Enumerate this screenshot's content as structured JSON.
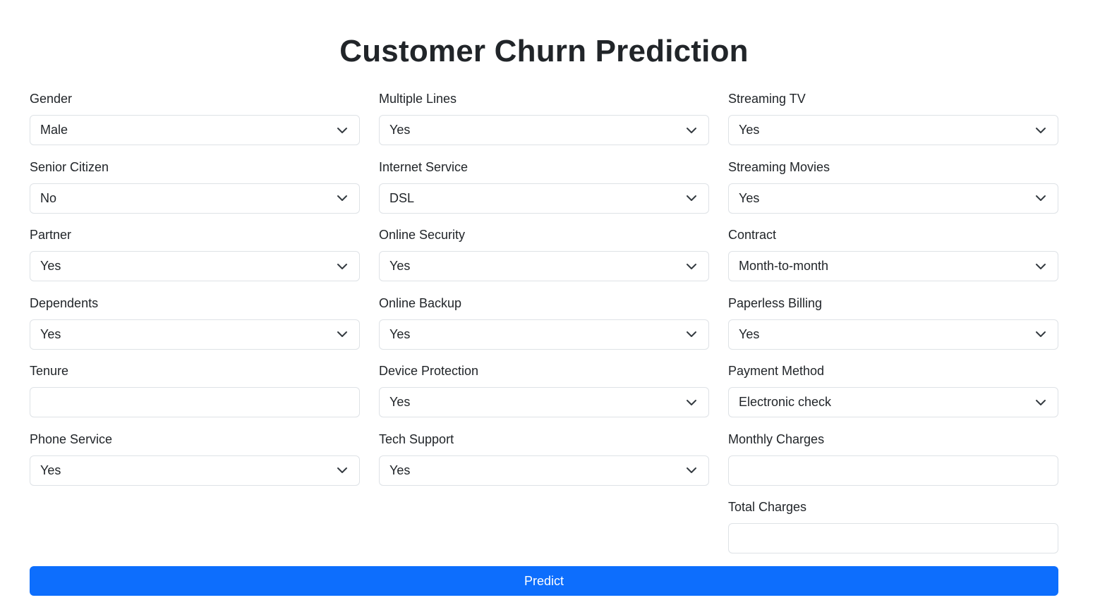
{
  "title": "Customer Churn Prediction",
  "columns": [
    [
      {
        "label": "Gender",
        "type": "select",
        "value": "Male",
        "name": "gender"
      },
      {
        "label": "Senior Citizen",
        "type": "select",
        "value": "No",
        "name": "senior-citizen"
      },
      {
        "label": "Partner",
        "type": "select",
        "value": "Yes",
        "name": "partner"
      },
      {
        "label": "Dependents",
        "type": "select",
        "value": "Yes",
        "name": "dependents"
      },
      {
        "label": "Tenure",
        "type": "input",
        "value": "",
        "name": "tenure"
      },
      {
        "label": "Phone Service",
        "type": "select",
        "value": "Yes",
        "name": "phone-service"
      }
    ],
    [
      {
        "label": "Multiple Lines",
        "type": "select",
        "value": "Yes",
        "name": "multiple-lines"
      },
      {
        "label": "Internet Service",
        "type": "select",
        "value": "DSL",
        "name": "internet-service"
      },
      {
        "label": "Online Security",
        "type": "select",
        "value": "Yes",
        "name": "online-security"
      },
      {
        "label": "Online Backup",
        "type": "select",
        "value": "Yes",
        "name": "online-backup"
      },
      {
        "label": "Device Protection",
        "type": "select",
        "value": "Yes",
        "name": "device-protection"
      },
      {
        "label": "Tech Support",
        "type": "select",
        "value": "Yes",
        "name": "tech-support"
      }
    ],
    [
      {
        "label": "Streaming TV",
        "type": "select",
        "value": "Yes",
        "name": "streaming-tv"
      },
      {
        "label": "Streaming Movies",
        "type": "select",
        "value": "Yes",
        "name": "streaming-movies"
      },
      {
        "label": "Contract",
        "type": "select",
        "value": "Month-to-month",
        "name": "contract"
      },
      {
        "label": "Paperless Billing",
        "type": "select",
        "value": "Yes",
        "name": "paperless-billing"
      },
      {
        "label": "Payment Method",
        "type": "select",
        "value": "Electronic check",
        "name": "payment-method"
      },
      {
        "label": "Monthly Charges",
        "type": "input",
        "value": "",
        "name": "monthly-charges"
      },
      {
        "label": "Total Charges",
        "type": "input",
        "value": "",
        "name": "total-charges"
      }
    ]
  ],
  "submit_label": "Predict",
  "colors": {
    "primary": "#0d6efd",
    "text": "#212529",
    "border": "#dee2e6"
  },
  "icons": {
    "select_caret": "chevron-down-icon"
  }
}
